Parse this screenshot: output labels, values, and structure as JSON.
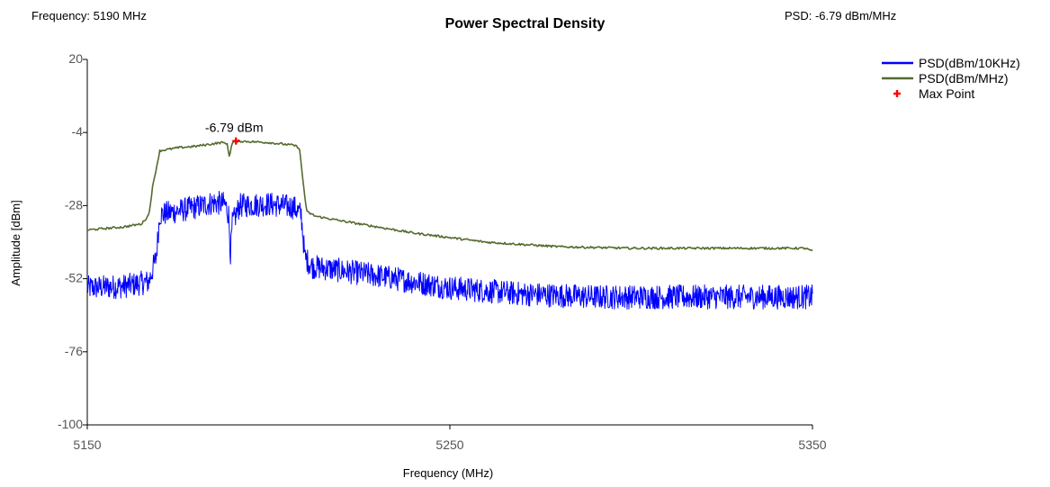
{
  "header": {
    "frequency_label": "Frequency: 5190 MHz",
    "psd_label": "PSD: -6.79 dBm/MHz"
  },
  "chart_data": {
    "type": "line",
    "title": "Power Spectral Density",
    "xlabel": "Frequency (MHz)",
    "ylabel": "Amplitude [dBm]",
    "xlim": [
      5150,
      5350
    ],
    "ylim": [
      -100,
      20
    ],
    "xticks": [
      "5150",
      "5250",
      "5350"
    ],
    "yticks": [
      "20",
      "-4",
      "-28",
      "-52",
      "-76",
      "-100"
    ],
    "grid": false,
    "legend_position": "top-right",
    "series": [
      {
        "name": "PSD(dBm/10KHz)",
        "color": "#0000ff",
        "style": "noisy",
        "noise": 4,
        "points": [
          [
            5150,
            -55
          ],
          [
            5160,
            -54.5
          ],
          [
            5167,
            -53
          ],
          [
            5169,
            -45
          ],
          [
            5170,
            -31
          ],
          [
            5180,
            -28.5
          ],
          [
            5185,
            -27
          ],
          [
            5188,
            -27.5
          ],
          [
            5189,
            -31
          ],
          [
            5189.5,
            -44
          ],
          [
            5190,
            -34
          ],
          [
            5192,
            -28
          ],
          [
            5200,
            -27.5
          ],
          [
            5207,
            -28.5
          ],
          [
            5209,
            -31
          ],
          [
            5210,
            -45
          ],
          [
            5212,
            -48
          ],
          [
            5230,
            -51
          ],
          [
            5250,
            -55
          ],
          [
            5270,
            -57
          ],
          [
            5290,
            -58
          ],
          [
            5320,
            -58
          ],
          [
            5350,
            -58
          ]
        ]
      },
      {
        "name": "PSD(dBm/MHz)",
        "color": "#556b2f",
        "style": "smooth",
        "noise": 0.35,
        "points": [
          [
            5150,
            -36
          ],
          [
            5160,
            -35
          ],
          [
            5165,
            -34
          ],
          [
            5167,
            -31
          ],
          [
            5168,
            -22
          ],
          [
            5170,
            -10
          ],
          [
            5175,
            -9
          ],
          [
            5180,
            -8.5
          ],
          [
            5187,
            -7.3
          ],
          [
            5188.5,
            -7.5
          ],
          [
            5189.2,
            -12
          ],
          [
            5189.8,
            -8
          ],
          [
            5190.5,
            -6.9
          ],
          [
            5191,
            -6.79
          ],
          [
            5195,
            -7
          ],
          [
            5200,
            -7.3
          ],
          [
            5207,
            -8.2
          ],
          [
            5208.5,
            -9
          ],
          [
            5209.5,
            -20
          ],
          [
            5210.5,
            -30
          ],
          [
            5213,
            -31.5
          ],
          [
            5220,
            -33
          ],
          [
            5240,
            -37
          ],
          [
            5260,
            -40
          ],
          [
            5280,
            -41.5
          ],
          [
            5300,
            -42
          ],
          [
            5330,
            -42
          ],
          [
            5348,
            -42
          ],
          [
            5350,
            -43
          ]
        ]
      }
    ],
    "max_point": {
      "name": "Max Point",
      "x": 5191,
      "y": -6.79,
      "label": "-6.79 dBm",
      "color": "#ff0000"
    }
  }
}
